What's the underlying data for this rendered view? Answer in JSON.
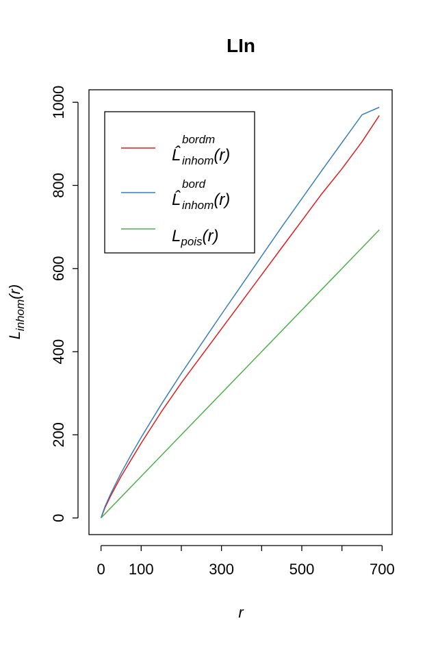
{
  "chart_data": {
    "type": "line",
    "title": "LIn",
    "xlabel": "r",
    "ylabel": {
      "main": "L",
      "sub": "inhom",
      "arg": "(r)"
    },
    "xlim": [
      -30,
      725
    ],
    "ylim": [
      -40,
      1030
    ],
    "xticks": [
      0,
      100,
      200,
      300,
      400,
      500,
      600,
      700
    ],
    "xtick_labels": [
      "0",
      "100",
      "",
      "300",
      "",
      "500",
      "",
      "700"
    ],
    "yticks": [
      0,
      200,
      400,
      600,
      800,
      1000
    ],
    "ytick_labels": [
      "0",
      "200",
      "400",
      "600",
      "800",
      "1000"
    ],
    "grid": false,
    "legend_position": "top-left",
    "series": [
      {
        "key": "bordm",
        "name": "L̂^{bordm}_{inhom}(r)",
        "label": {
          "main": "L̂",
          "sup": "bordm",
          "sub": "inhom",
          "arg": "(r)"
        },
        "color": "#e41a1c",
        "x": [
          0,
          10,
          25,
          50,
          75,
          100,
          150,
          200,
          250,
          300,
          350,
          400,
          450,
          500,
          550,
          600,
          650,
          693
        ],
        "y": [
          0,
          25,
          55,
          100,
          140,
          180,
          255,
          325,
          390,
          455,
          520,
          585,
          650,
          715,
          780,
          840,
          905,
          968
        ]
      },
      {
        "key": "bord",
        "name": "L̂^{bord}_{inhom}(r)",
        "label": {
          "main": "L̂",
          "sup": "bord",
          "sub": "inhom",
          "arg": "(r)"
        },
        "color": "#377eb8",
        "x": [
          0,
          10,
          25,
          50,
          75,
          100,
          150,
          200,
          250,
          300,
          350,
          400,
          450,
          500,
          550,
          600,
          650,
          693
        ],
        "y": [
          0,
          28,
          60,
          108,
          152,
          194,
          273,
          348,
          419,
          490,
          560,
          630,
          700,
          768,
          836,
          903,
          970,
          988
        ]
      },
      {
        "key": "pois",
        "name": "L_{pois}(r)",
        "label": {
          "main": "L",
          "sup": "",
          "sub": "pois",
          "arg": "(r)"
        },
        "color": "#4daf4a",
        "x": [
          0,
          693
        ],
        "y": [
          0,
          693
        ]
      }
    ]
  }
}
